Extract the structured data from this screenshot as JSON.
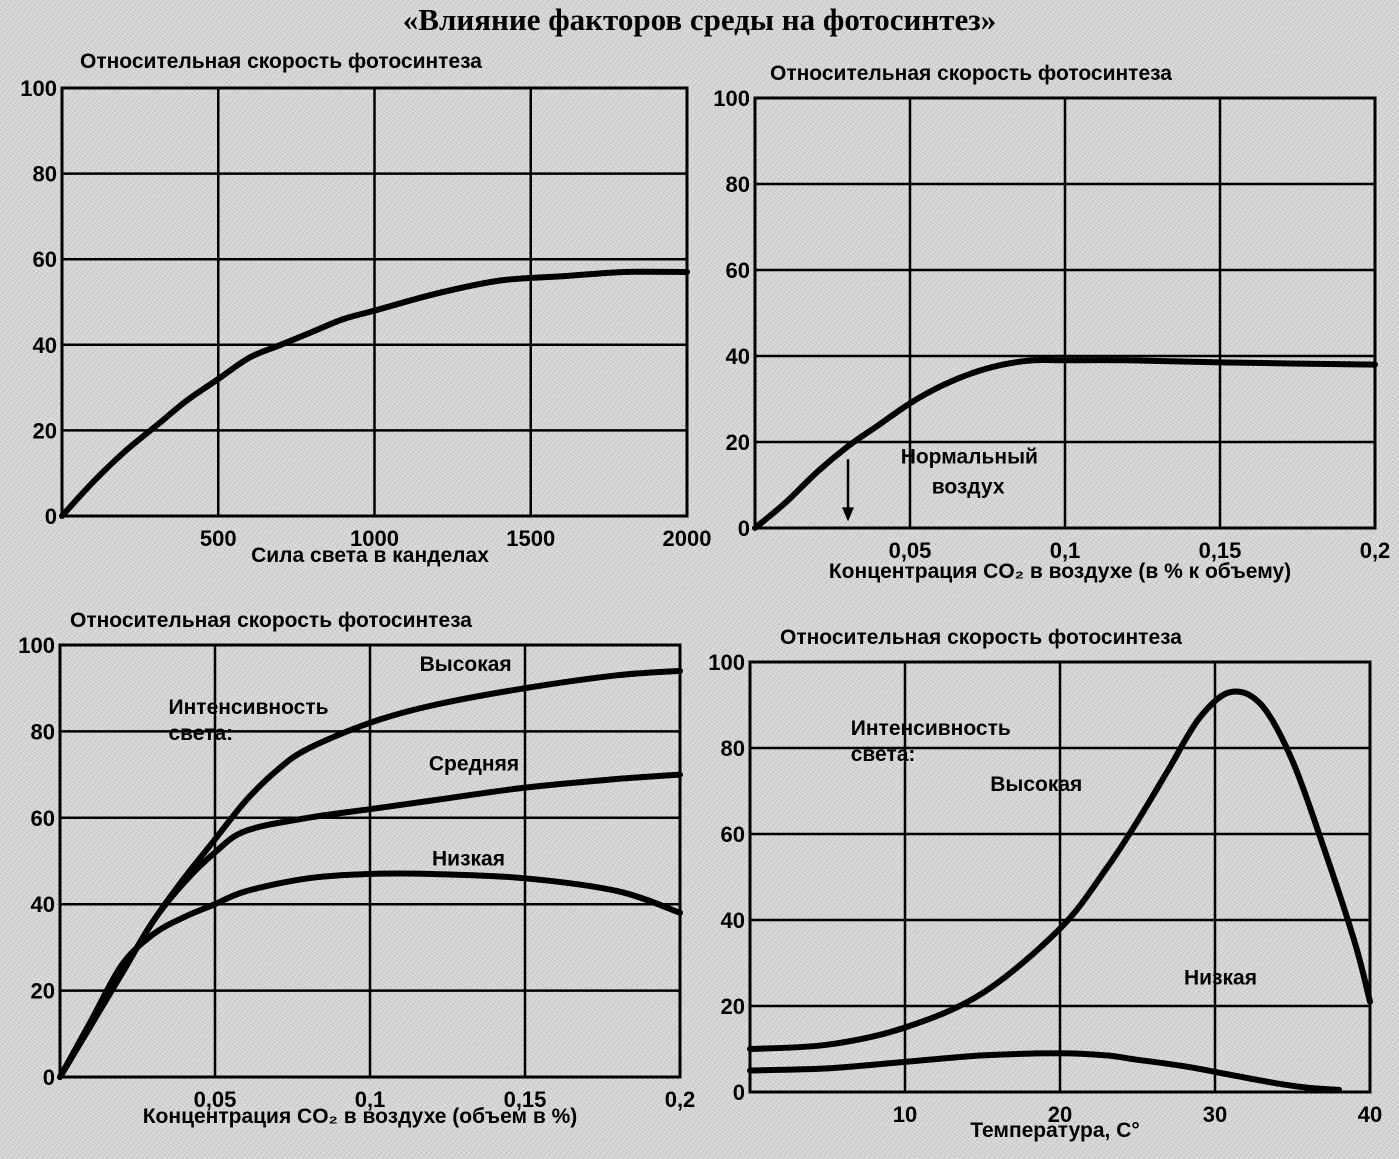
{
  "title": "«Влияние факторов среды на фотосинтез»",
  "chart_data": [
    {
      "type": "line",
      "title": "Относительная скорость фотосинтеза",
      "xlabel": "Сила света в канделах",
      "ylabel": "",
      "xlim": [
        0,
        2000
      ],
      "ylim": [
        0,
        100
      ],
      "xticks": [
        500,
        1000,
        1500,
        2000
      ],
      "xtick_labels": [
        "500",
        "1000",
        "1500",
        "2000"
      ],
      "yticks": [
        0,
        20,
        40,
        60,
        80,
        100
      ],
      "ytick_labels": [
        "0",
        "20",
        "40",
        "60",
        "80",
        "100"
      ],
      "grid": true,
      "series": [
        {
          "x": [
            0,
            100,
            200,
            300,
            400,
            500,
            600,
            700,
            800,
            900,
            1000,
            1200,
            1400,
            1600,
            1800,
            2000
          ],
          "y": [
            0,
            8,
            15,
            21,
            27,
            32,
            37,
            40,
            43,
            46,
            48,
            52,
            55,
            56,
            57,
            57
          ]
        }
      ],
      "annotations": []
    },
    {
      "type": "line",
      "title": "Относительная скорость фотосинтеза",
      "xlabel": "Концентрация CO₂ в воздухе (в % к объему)",
      "ylabel": "",
      "xlim": [
        0,
        0.2
      ],
      "ylim": [
        0,
        100
      ],
      "xticks": [
        0.05,
        0.1,
        0.15,
        0.2
      ],
      "xtick_labels": [
        "0,05",
        "0,1",
        "0,15",
        "0,2"
      ],
      "yticks": [
        0,
        20,
        40,
        60,
        80,
        100
      ],
      "ytick_labels": [
        "0",
        "20",
        "40",
        "60",
        "80",
        "100"
      ],
      "grid": true,
      "series": [
        {
          "x": [
            0,
            0.01,
            0.02,
            0.03,
            0.04,
            0.05,
            0.06,
            0.07,
            0.08,
            0.09,
            0.1,
            0.12,
            0.15,
            0.2
          ],
          "y": [
            0,
            6,
            13,
            19,
            24,
            29,
            33,
            36,
            38,
            39,
            39,
            39,
            38.5,
            38
          ]
        }
      ],
      "annotations": [
        {
          "text": "Нормальный",
          "x": 0.047,
          "y": 15
        },
        {
          "text": "воздух",
          "x": 0.057,
          "y": 8
        },
        {
          "type": "arrow",
          "x": 0.03,
          "y_from": 16,
          "y_to": 2
        }
      ]
    },
    {
      "type": "line",
      "title": "Относительная скорость фотосинтеза",
      "xlabel": "Концентрация CO₂ в воздухе (объем в %)",
      "ylabel": "",
      "xlim": [
        0,
        0.2
      ],
      "ylim": [
        0,
        100
      ],
      "xticks": [
        0.05,
        0.1,
        0.15,
        0.2
      ],
      "xtick_labels": [
        "0,05",
        "0,1",
        "0,15",
        "0,2"
      ],
      "yticks": [
        0,
        20,
        40,
        60,
        80,
        100
      ],
      "ytick_labels": [
        "0",
        "20",
        "40",
        "60",
        "80",
        "100"
      ],
      "grid": true,
      "series": [
        {
          "name": "Высокая",
          "x": [
            0,
            0.01,
            0.02,
            0.03,
            0.04,
            0.05,
            0.06,
            0.07,
            0.08,
            0.1,
            0.12,
            0.15,
            0.18,
            0.2
          ],
          "y": [
            0,
            12,
            24,
            36,
            46,
            55,
            64,
            71,
            76,
            82,
            86,
            90,
            93,
            94
          ]
        },
        {
          "name": "Средняя",
          "x": [
            0,
            0.01,
            0.02,
            0.03,
            0.04,
            0.05,
            0.06,
            0.08,
            0.1,
            0.12,
            0.15,
            0.18,
            0.2
          ],
          "y": [
            0,
            12,
            24,
            36,
            45,
            52,
            57,
            60,
            62,
            64,
            67,
            69,
            70
          ]
        },
        {
          "name": "Низкая",
          "x": [
            0,
            0.01,
            0.02,
            0.03,
            0.04,
            0.05,
            0.06,
            0.08,
            0.1,
            0.12,
            0.15,
            0.18,
            0.2
          ],
          "y": [
            0,
            13,
            26,
            33,
            37,
            40,
            43,
            46,
            47,
            47,
            46,
            43,
            38
          ]
        }
      ],
      "annotations": [
        {
          "text": "Интенсивность",
          "x": 0.035,
          "y": 84
        },
        {
          "text": "света:",
          "x": 0.035,
          "y": 78
        },
        {
          "text": "Высокая",
          "x": 0.116,
          "y": 94
        },
        {
          "text": "Средняя",
          "x": 0.119,
          "y": 71
        },
        {
          "text": "Низкая",
          "x": 0.12,
          "y": 49
        }
      ]
    },
    {
      "type": "line",
      "title": "Относительная скорость фотосинтеза",
      "xlabel": "Температура, C°",
      "ylabel": "",
      "xlim": [
        0,
        40
      ],
      "ylim": [
        0,
        100
      ],
      "xticks": [
        10,
        20,
        30,
        40
      ],
      "xtick_labels": [
        "10",
        "20",
        "30",
        "40"
      ],
      "yticks": [
        0,
        20,
        40,
        60,
        80,
        100
      ],
      "ytick_labels": [
        "0",
        "20",
        "40",
        "60",
        "80",
        "100"
      ],
      "grid": true,
      "series": [
        {
          "name": "Высокая",
          "x": [
            0,
            5,
            10,
            15,
            20,
            23,
            25,
            27,
            29,
            31,
            33,
            35,
            37,
            39,
            40
          ],
          "y": [
            10,
            11,
            15,
            23,
            38,
            52,
            63,
            75,
            87,
            93,
            90,
            77,
            57,
            35,
            21
          ]
        },
        {
          "name": "Низкая",
          "x": [
            0,
            5,
            10,
            15,
            20,
            23,
            25,
            28,
            31,
            34,
            36,
            38
          ],
          "y": [
            5,
            5.5,
            7,
            8.5,
            9,
            8.5,
            7.5,
            6,
            4,
            2,
            1,
            0.5
          ]
        }
      ],
      "annotations": [
        {
          "text": "Интенсивность",
          "x": 6.5,
          "y": 83
        },
        {
          "text": "света:",
          "x": 6.5,
          "y": 77
        },
        {
          "text": "Высокая",
          "x": 15.5,
          "y": 70
        },
        {
          "text": "Низкая",
          "x": 28,
          "y": 25
        }
      ]
    }
  ]
}
